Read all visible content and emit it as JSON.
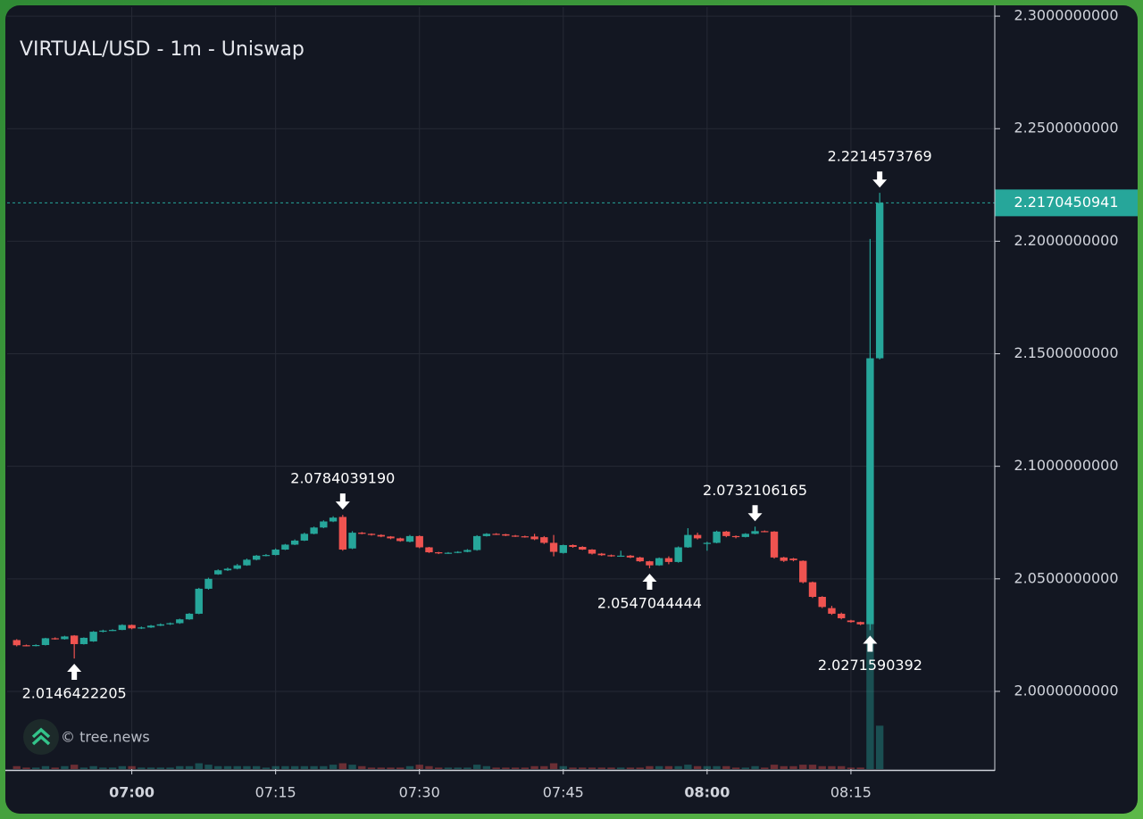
{
  "chart_data": {
    "type": "candlestick",
    "title": "VIRTUAL/USD - 1m - Uniswap",
    "watermark": "© tree.news",
    "up_color": "#26a69a",
    "down_color": "#ef5350",
    "grid": true,
    "x": [
      "06:48",
      "06:49",
      "06:50",
      "06:51",
      "06:52",
      "06:53",
      "06:54",
      "06:55",
      "06:56",
      "06:57",
      "06:58",
      "06:59",
      "07:00",
      "07:01",
      "07:02",
      "07:03",
      "07:04",
      "07:05",
      "07:06",
      "07:07",
      "07:08",
      "07:09",
      "07:10",
      "07:11",
      "07:12",
      "07:13",
      "07:14",
      "07:15",
      "07:16",
      "07:17",
      "07:18",
      "07:19",
      "07:20",
      "07:21",
      "07:22",
      "07:23",
      "07:24",
      "07:25",
      "07:26",
      "07:27",
      "07:28",
      "07:29",
      "07:30",
      "07:31",
      "07:32",
      "07:33",
      "07:34",
      "07:35",
      "07:36",
      "07:37",
      "07:38",
      "07:39",
      "07:40",
      "07:41",
      "07:42",
      "07:43",
      "07:44",
      "07:45",
      "07:46",
      "07:47",
      "07:48",
      "07:49",
      "07:50",
      "07:51",
      "07:52",
      "07:53",
      "07:54",
      "07:55",
      "07:56",
      "07:57",
      "07:58",
      "07:59",
      "08:00",
      "08:01",
      "08:02",
      "08:03",
      "08:04",
      "08:05",
      "08:06",
      "08:07",
      "08:08",
      "08:09",
      "08:10",
      "08:11",
      "08:12",
      "08:13",
      "08:14",
      "08:15",
      "08:16",
      "08:17",
      "08:18"
    ],
    "open": [
      2.0228,
      2.0205,
      2.0203,
      2.0206,
      2.0236,
      2.0232,
      2.0248,
      2.021,
      2.0222,
      2.0265,
      2.027,
      2.0273,
      2.0295,
      2.028,
      2.0284,
      2.0292,
      2.0298,
      2.0303,
      2.032,
      2.0345,
      2.0456,
      2.052,
      2.0538,
      2.0545,
      2.056,
      2.0585,
      2.0603,
      2.0606,
      2.063,
      2.0652,
      2.067,
      2.07,
      2.0728,
      2.0755,
      2.0775,
      2.0635,
      2.0705,
      2.07,
      2.0695,
      2.0688,
      2.068,
      2.0665,
      2.069,
      2.064,
      2.0618,
      2.0614,
      2.0616,
      2.062,
      2.0628,
      2.069,
      2.07,
      2.0698,
      2.0692,
      2.0689,
      2.0688,
      2.0685,
      2.066,
      2.0615,
      2.065,
      2.0642,
      2.063,
      2.0612,
      2.0605,
      2.06,
      2.0603,
      2.0595,
      2.0578,
      2.056,
      2.0592,
      2.0575,
      2.064,
      2.0695,
      2.0655,
      2.066,
      2.071,
      2.069,
      2.0686,
      2.07,
      2.0712,
      2.071,
      2.0595,
      2.059,
      2.058,
      2.0485,
      2.042,
      2.037,
      2.0345,
      2.0315,
      2.0308,
      2.0298,
      2.148
    ],
    "high": [
      2.0232,
      2.0208,
      2.0209,
      2.0238,
      2.024,
      2.0247,
      2.025,
      2.024,
      2.0268,
      2.0274,
      2.0276,
      2.0298,
      2.0297,
      2.0288,
      2.0295,
      2.0302,
      2.0306,
      2.0323,
      2.0348,
      2.046,
      2.0505,
      2.0542,
      2.055,
      2.0566,
      2.059,
      2.0606,
      2.061,
      2.0635,
      2.0655,
      2.0675,
      2.0705,
      2.0732,
      2.076,
      2.0778,
      2.0784,
      2.0712,
      2.0708,
      2.0702,
      2.0698,
      2.069,
      2.0683,
      2.0695,
      2.0693,
      2.0642,
      2.062,
      2.0619,
      2.0623,
      2.0632,
      2.0694,
      2.0703,
      2.0703,
      2.07,
      2.0695,
      2.0692,
      2.07,
      2.069,
      2.0695,
      2.0652,
      2.0653,
      2.0645,
      2.0632,
      2.0615,
      2.0608,
      2.0625,
      2.0606,
      2.0598,
      2.058,
      2.0595,
      2.06,
      2.0644,
      2.0725,
      2.0705,
      2.0665,
      2.0714,
      2.0713,
      2.0693,
      2.0703,
      2.0732,
      2.0715,
      2.0712,
      2.0598,
      2.0593,
      2.0582,
      2.0488,
      2.0423,
      2.038,
      2.035,
      2.0318,
      2.031,
      2.201,
      2.2215
    ],
    "low": [
      2.02,
      2.02,
      2.02,
      2.0204,
      2.023,
      2.023,
      2.0146,
      2.0208,
      2.022,
      2.0262,
      2.0268,
      2.0272,
      2.0276,
      2.0277,
      2.0282,
      2.029,
      2.0295,
      2.03,
      2.0318,
      2.0343,
      2.0452,
      2.0518,
      2.0535,
      2.0542,
      2.0558,
      2.0582,
      2.06,
      2.0604,
      2.0628,
      2.065,
      2.0668,
      2.0698,
      2.0725,
      2.0752,
      2.0625,
      2.0632,
      2.0698,
      2.0692,
      2.0685,
      2.0676,
      2.0665,
      2.0662,
      2.0636,
      2.0615,
      2.061,
      2.0611,
      2.0614,
      2.0618,
      2.0625,
      2.0688,
      2.0695,
      2.069,
      2.0686,
      2.0683,
      2.0672,
      2.0655,
      2.06,
      2.0612,
      2.0638,
      2.0628,
      2.0608,
      2.0602,
      2.0598,
      2.0598,
      2.0592,
      2.0575,
      2.0547,
      2.0558,
      2.0565,
      2.0572,
      2.0638,
      2.0675,
      2.0625,
      2.0658,
      2.0685,
      2.068,
      2.0684,
      2.0698,
      2.0707,
      2.059,
      2.0575,
      2.0578,
      2.048,
      2.0415,
      2.037,
      2.034,
      2.032,
      2.0305,
      2.0294,
      2.0272,
      2.1475
    ],
    "close": [
      2.0205,
      2.0203,
      2.0206,
      2.0236,
      2.0232,
      2.0244,
      2.021,
      2.0238,
      2.0265,
      2.027,
      2.0273,
      2.0295,
      2.028,
      2.0284,
      2.0292,
      2.0298,
      2.0303,
      2.032,
      2.0345,
      2.0456,
      2.05,
      2.0538,
      2.0545,
      2.056,
      2.0585,
      2.0603,
      2.0606,
      2.063,
      2.0652,
      2.067,
      2.07,
      2.0728,
      2.0755,
      2.0772,
      2.063,
      2.0705,
      2.07,
      2.0695,
      2.0688,
      2.068,
      2.0668,
      2.069,
      2.064,
      2.0618,
      2.0614,
      2.0616,
      2.062,
      2.0628,
      2.069,
      2.07,
      2.0698,
      2.0692,
      2.0689,
      2.0686,
      2.0676,
      2.066,
      2.062,
      2.065,
      2.0642,
      2.063,
      2.0612,
      2.0605,
      2.06,
      2.0603,
      2.0595,
      2.0578,
      2.056,
      2.0592,
      2.0575,
      2.064,
      2.0695,
      2.068,
      2.066,
      2.071,
      2.069,
      2.0686,
      2.07,
      2.0712,
      2.071,
      2.0595,
      2.058,
      2.0583,
      2.0485,
      2.042,
      2.0375,
      2.0345,
      2.0325,
      2.0308,
      2.0298,
      2.148,
      2.217
    ],
    "volume": [
      2,
      1,
      1,
      2,
      1,
      2,
      3,
      1,
      2,
      1,
      1,
      2,
      2,
      1,
      1,
      1,
      1,
      2,
      2,
      4,
      3,
      2,
      2,
      2,
      2,
      2,
      1,
      2,
      2,
      2,
      2,
      2,
      2,
      3,
      4,
      3,
      2,
      1,
      1,
      1,
      1,
      2,
      3,
      2,
      1,
      1,
      1,
      1,
      3,
      2,
      1,
      1,
      1,
      1,
      2,
      2,
      4,
      2,
      1,
      1,
      1,
      1,
      1,
      1,
      1,
      1,
      2,
      2,
      2,
      2,
      3,
      2,
      2,
      2,
      2,
      1,
      1,
      2,
      1,
      3,
      2,
      2,
      3,
      3,
      2,
      2,
      2,
      1,
      1,
      100,
      30
    ],
    "xlim": [
      "06:47",
      "08:30"
    ],
    "xticks": [
      "07:00",
      "07:15",
      "07:30",
      "07:45",
      "08:00",
      "08:15"
    ],
    "bold_xticks": [
      "07:00",
      "08:00"
    ],
    "ylim": [
      1.9655,
      2.304
    ],
    "yticks": [
      {
        "value": 2.0,
        "label": "2.0000000000"
      },
      {
        "value": 2.05,
        "label": "2.0500000000"
      },
      {
        "value": 2.1,
        "label": "2.1000000000"
      },
      {
        "value": 2.15,
        "label": "2.1500000000"
      },
      {
        "value": 2.2,
        "label": "2.2000000000"
      },
      {
        "value": 2.25,
        "label": "2.2500000000"
      },
      {
        "value": 2.3,
        "label": "2.3000000000"
      }
    ],
    "last_price": {
      "value": 2.2170450941,
      "label": "2.2170450941"
    },
    "annotations": [
      {
        "x": "06:54",
        "value": 2.0146422205,
        "label": "2.0146422205"
      },
      {
        "x": "07:22",
        "value": 2.078403919,
        "label": "2.0784039190"
      },
      {
        "x": "07:54",
        "value": 2.0547044444,
        "label": "2.0547044444"
      },
      {
        "x": "08:05",
        "value": 2.0732106165,
        "label": "2.0732106165"
      },
      {
        "x": "08:17",
        "value": 2.0271590392,
        "label": "2.0271590392"
      },
      {
        "x": "08:18",
        "value": 2.2214573769,
        "label": "2.2214573769"
      }
    ]
  }
}
